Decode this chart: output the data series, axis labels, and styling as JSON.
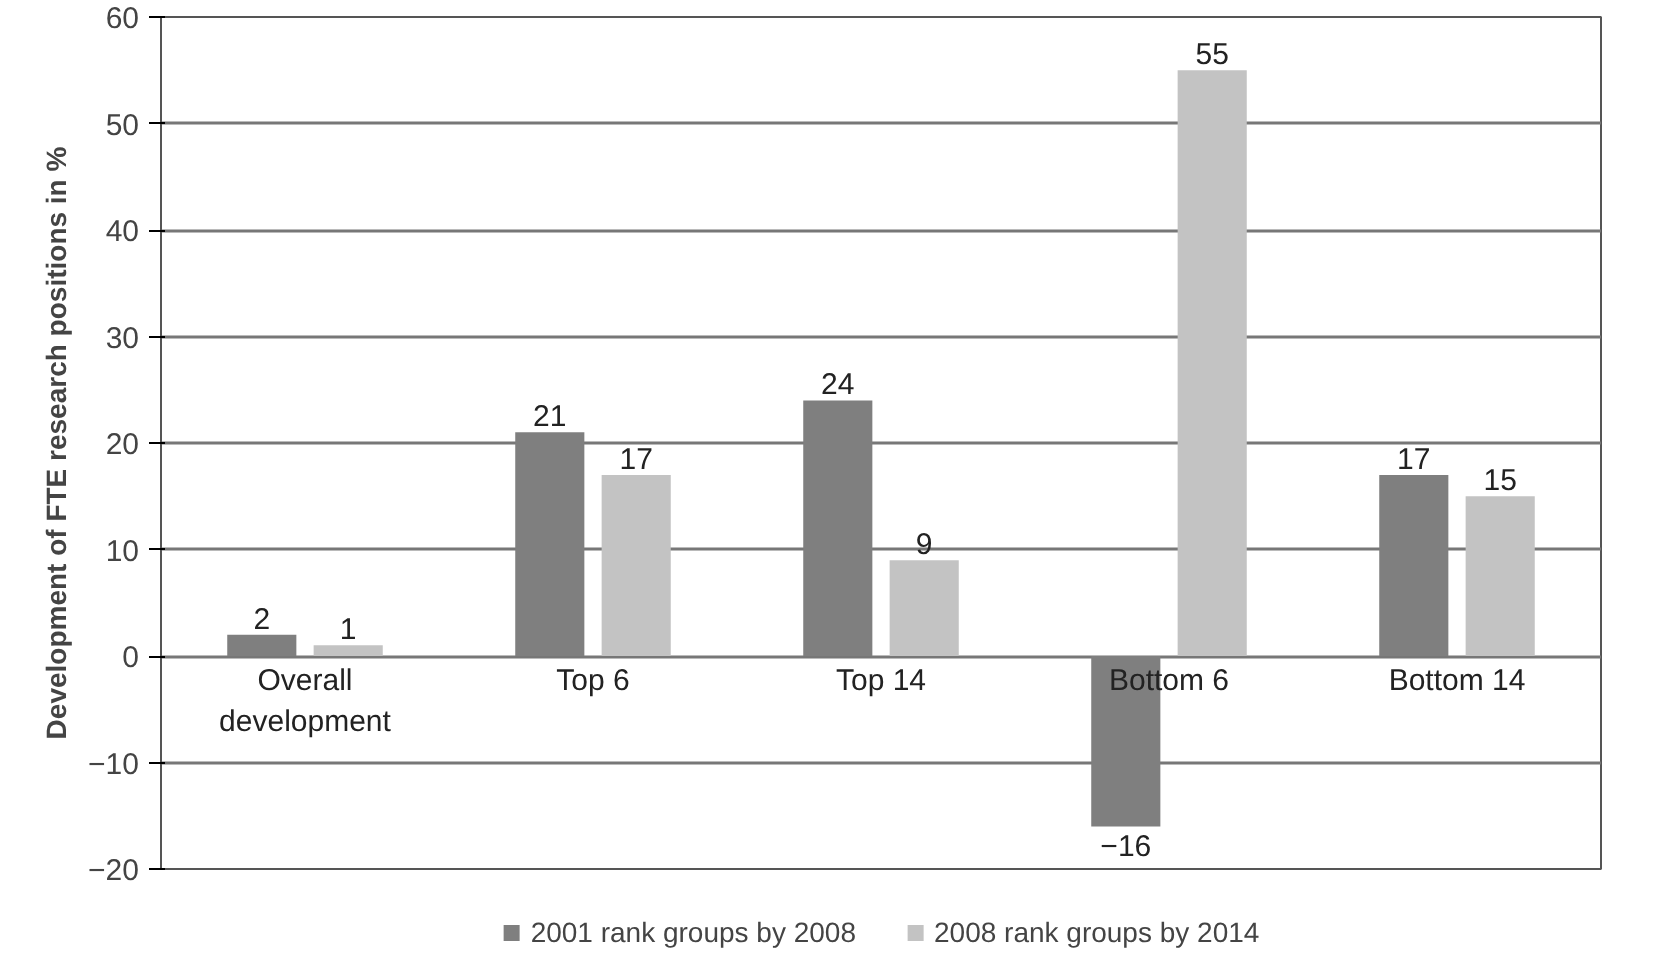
{
  "chart_data": {
    "type": "bar",
    "ylabel": "Development of FTE research positions in %",
    "categories": [
      "Overall development",
      "Top 6",
      "Top 14",
      "Bottom 6",
      "Bottom 14"
    ],
    "series": [
      {
        "name": "2001 rank groups by 2008",
        "color": "#7f7f7f",
        "values": [
          2,
          21,
          24,
          -16,
          17
        ],
        "value_labels": [
          "2",
          "21",
          "24",
          "−16",
          "17"
        ]
      },
      {
        "name": "2008 rank groups by 2014",
        "color": "#c3c3c3",
        "values": [
          1,
          17,
          9,
          55,
          15
        ],
        "value_labels": [
          "1",
          "17",
          "9",
          "55",
          "15"
        ]
      }
    ],
    "ylim": [
      -20,
      60
    ],
    "yticks": [
      {
        "value": -20,
        "label": "−20"
      },
      {
        "value": -10,
        "label": "−10"
      },
      0,
      10,
      20,
      30,
      40,
      50,
      60
    ],
    "grid": "y",
    "legend": "bottom"
  }
}
